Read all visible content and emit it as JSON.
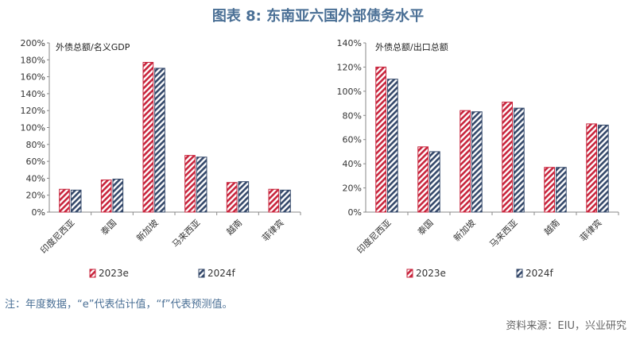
{
  "title": "图表 8: 东南亚六国外部债务水平",
  "note": "注：年度数据，“e”代表估计值，“f”代表预测值。",
  "source": "资料来源：EIU，兴业研究",
  "colors": {
    "series_2023": "#c8243c",
    "series_2024": "#34486a",
    "title": "#4a6f95"
  },
  "chart_data": [
    {
      "type": "bar",
      "title": "外债总额/名义GDP",
      "categories": [
        "印度尼西亚",
        "泰国",
        "新加坡",
        "马来西亚",
        "越南",
        "菲律宾"
      ],
      "series": [
        {
          "name": "2023e",
          "values": [
            27,
            38,
            177,
            67,
            35,
            27
          ]
        },
        {
          "name": "2024f",
          "values": [
            26,
            39,
            170,
            65,
            36,
            26
          ]
        }
      ],
      "ylim": [
        0,
        200
      ],
      "yticks": [
        "0%",
        "20%",
        "40%",
        "60%",
        "80%",
        "100%",
        "120%",
        "140%",
        "160%",
        "180%",
        "200%"
      ],
      "legend": "bottom"
    },
    {
      "type": "bar",
      "title": "外债总额/出口总额",
      "categories": [
        "印度尼西亚",
        "泰国",
        "新加坡",
        "马来西亚",
        "越南",
        "菲律宾"
      ],
      "series": [
        {
          "name": "2023e",
          "values": [
            120,
            54,
            84,
            91,
            37,
            73
          ]
        },
        {
          "name": "2024f",
          "values": [
            110,
            50,
            83,
            86,
            37,
            72
          ]
        }
      ],
      "ylim": [
        0,
        140
      ],
      "yticks": [
        "0%",
        "20%",
        "40%",
        "60%",
        "80%",
        "100%",
        "120%",
        "140%"
      ],
      "legend": "bottom"
    }
  ]
}
